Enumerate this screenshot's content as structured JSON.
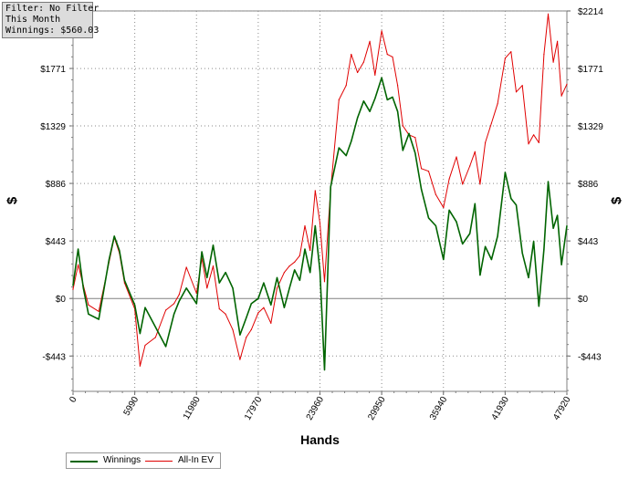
{
  "filter_panel": {
    "line1": "Filter: No Filter",
    "line2": "This Month",
    "line3": "Winnings: $560.03"
  },
  "chart_data": {
    "type": "line",
    "xlabel": "Hands",
    "ylabel_left": "$",
    "ylabel_right": "$",
    "xlim": [
      0,
      47920
    ],
    "ylim": [
      -715,
      2214
    ],
    "x_ticks": [
      0,
      5990,
      11980,
      17970,
      23960,
      29950,
      35940,
      41930,
      47920
    ],
    "y_ticks": [
      -443,
      0,
      443,
      886,
      1329,
      1771,
      2214
    ],
    "y_tick_labels": [
      "-$443",
      "$0",
      "$443",
      "$886",
      "$1329",
      "$1771",
      "$2214"
    ],
    "grid": true,
    "legend_position": "bottom-left",
    "series": [
      {
        "name": "Winnings",
        "color": "#006400",
        "x": [
          0,
          500,
          1000,
          1500,
          2500,
          3500,
          4000,
          4500,
          5000,
          5990,
          6500,
          7000,
          8000,
          9000,
          9800,
          10300,
          11000,
          11980,
          12500,
          13000,
          13600,
          14200,
          14800,
          15500,
          16200,
          16800,
          17300,
          17970,
          18500,
          19200,
          19800,
          20500,
          21000,
          21500,
          22000,
          22500,
          23000,
          23500,
          23960,
          24400,
          25000,
          25800,
          26500,
          27000,
          27600,
          28200,
          28800,
          29300,
          29950,
          30500,
          31000,
          31500,
          32000,
          32600,
          33200,
          33800,
          34500,
          35200,
          35940,
          36500,
          37200,
          37800,
          38500,
          39000,
          39500,
          40000,
          40600,
          41200,
          41930,
          42500,
          43000,
          43600,
          44200,
          44700,
          45200,
          45700,
          46100,
          46600,
          47000,
          47400,
          47920
        ],
        "values": [
          100,
          380,
          80,
          -120,
          -160,
          300,
          480,
          370,
          140,
          -50,
          -270,
          -70,
          -220,
          -370,
          -120,
          -20,
          80,
          -40,
          360,
          160,
          410,
          120,
          200,
          80,
          -280,
          -150,
          -40,
          0,
          120,
          -50,
          160,
          -70,
          80,
          220,
          140,
          380,
          200,
          560,
          210,
          -550,
          860,
          1160,
          1100,
          1210,
          1390,
          1520,
          1440,
          1540,
          1700,
          1530,
          1550,
          1440,
          1140,
          1270,
          1120,
          840,
          620,
          560,
          300,
          680,
          590,
          420,
          500,
          730,
          180,
          400,
          300,
          480,
          970,
          770,
          720,
          350,
          160,
          440,
          -60,
          380,
          900,
          540,
          640,
          260,
          560
        ]
      },
      {
        "name": "All-In EV",
        "color": "#e00000",
        "x": [
          0,
          500,
          1000,
          1500,
          2500,
          3500,
          4000,
          4500,
          5000,
          5990,
          6500,
          7000,
          8000,
          9000,
          9800,
          10300,
          11000,
          11980,
          12500,
          13000,
          13600,
          14200,
          14800,
          15500,
          16200,
          16800,
          17300,
          17970,
          18500,
          19200,
          19800,
          20500,
          21000,
          21500,
          22000,
          22500,
          23000,
          23500,
          23960,
          24400,
          25000,
          25800,
          26500,
          27000,
          27600,
          28200,
          28800,
          29300,
          29950,
          30500,
          31000,
          31500,
          32000,
          32600,
          33200,
          33800,
          34500,
          35200,
          35940,
          36500,
          37200,
          37800,
          38500,
          39000,
          39500,
          40000,
          40600,
          41200,
          41930,
          42500,
          43000,
          43600,
          44200,
          44700,
          45200,
          45700,
          46100,
          46600,
          47000,
          47400,
          47920
        ],
        "values": [
          70,
          260,
          100,
          -50,
          -100,
          280,
          470,
          350,
          120,
          -80,
          -520,
          -360,
          -300,
          -90,
          -40,
          30,
          240,
          40,
          310,
          80,
          250,
          -80,
          -120,
          -240,
          -470,
          -300,
          -240,
          -110,
          -70,
          -190,
          80,
          200,
          250,
          280,
          330,
          560,
          370,
          830,
          580,
          130,
          840,
          1530,
          1640,
          1880,
          1740,
          1820,
          1980,
          1720,
          2060,
          1880,
          1860,
          1640,
          1330,
          1260,
          1240,
          1000,
          980,
          800,
          700,
          920,
          1090,
          880,
          1020,
          1130,
          880,
          1200,
          1350,
          1500,
          1850,
          1900,
          1590,
          1640,
          1190,
          1260,
          1200,
          1880,
          2190,
          1820,
          1980,
          1560,
          1650
        ]
      }
    ]
  }
}
